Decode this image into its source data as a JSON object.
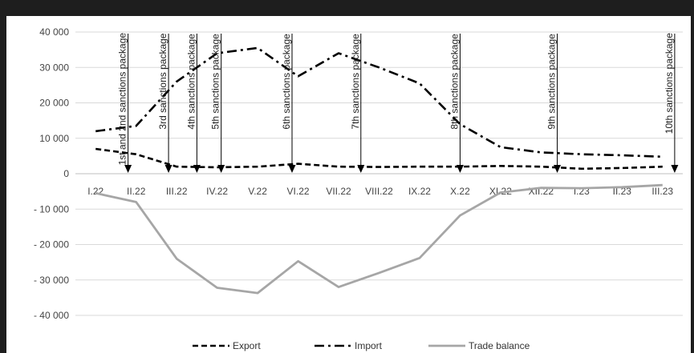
{
  "chart_data": {
    "type": "line",
    "title": "",
    "xlabel": "",
    "ylabel": "",
    "categories": [
      "I.22",
      "II.22",
      "III.22",
      "IV.22",
      "V.22",
      "VI.22",
      "VII.22",
      "VIII.22",
      "IX.22",
      "X.22",
      "XI.22",
      "XII.22",
      "I.23",
      "II.23",
      "III.23"
    ],
    "y_ticks": [
      "40 000",
      "30 000",
      "20 000",
      "10 000",
      "0",
      "- 10 000",
      "- 20 000",
      "- 30 000",
      "- 40 000"
    ],
    "ylim": [
      -40000,
      40000
    ],
    "grid": true,
    "legend_position": "bottom",
    "series": [
      {
        "name": "Export",
        "style": "dashed",
        "color": "#000000",
        "values": [
          7000,
          5500,
          2000,
          1800,
          2000,
          2800,
          2000,
          1900,
          2000,
          2000,
          2200,
          2000,
          1400,
          1600,
          2000
        ]
      },
      {
        "name": "Import",
        "style": "dash-dot",
        "color": "#000000",
        "values": [
          12000,
          13500,
          26000,
          34000,
          35500,
          27500,
          34000,
          30000,
          25500,
          14000,
          7500,
          6000,
          5500,
          5200,
          4800
        ]
      },
      {
        "name": "Trade balance",
        "style": "solid",
        "color": "#a6a6a6",
        "values": [
          -5500,
          -8000,
          -24000,
          -32200,
          -33700,
          -24700,
          -32000,
          -28000,
          -23800,
          -11800,
          -5300,
          -4000,
          -4100,
          -3800,
          -3200
        ]
      }
    ],
    "annotations": [
      {
        "label": "1st and 2nd sanctions package",
        "x": 0.8
      },
      {
        "label": "3rd sanctions package",
        "x": 1.8
      },
      {
        "label": "4th sanctions package",
        "x": 2.5
      },
      {
        "label": "5th sanctions package",
        "x": 3.1
      },
      {
        "label": "6th sanctions package",
        "x": 4.85
      },
      {
        "label": "7th sanctions package",
        "x": 6.55
      },
      {
        "label": "8th sanctions package",
        "x": 9.0
      },
      {
        "label": "9th sanctions package",
        "x": 11.4
      },
      {
        "label": "10th sanctions package",
        "x": 14.3
      }
    ]
  }
}
